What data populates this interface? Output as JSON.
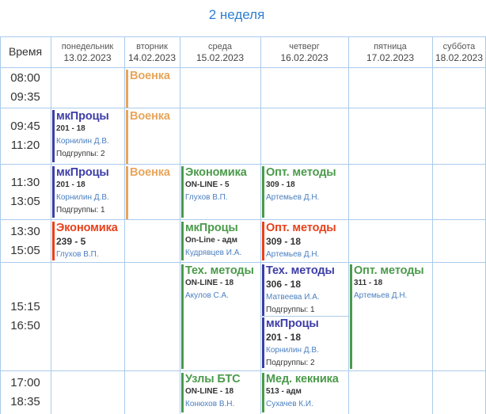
{
  "title": "2 неделя",
  "time_header": "Время",
  "days": [
    {
      "name": "понедельник",
      "date": "13.02.2023"
    },
    {
      "name": "вторник",
      "date": "14.02.2023"
    },
    {
      "name": "среда",
      "date": "15.02.2023"
    },
    {
      "name": "четверг",
      "date": "16.02.2023"
    },
    {
      "name": "пятница",
      "date": "17.02.2023"
    },
    {
      "name": "суббота",
      "date": "18.02.2023"
    }
  ],
  "slots": [
    {
      "start": "08:00",
      "end": "09:35"
    },
    {
      "start": "09:45",
      "end": "11:20"
    },
    {
      "start": "11:30",
      "end": "13:05"
    },
    {
      "start": "13:30",
      "end": "15:05"
    },
    {
      "start": "15:15",
      "end": "16:50"
    },
    {
      "start": "17:00",
      "end": "18:35"
    }
  ],
  "colors": {
    "purple": "#3d3da8",
    "orange": "#e8a55a",
    "green": "#4a9a4a",
    "red": "#e8401a",
    "grid": "#a9cbea",
    "title": "#2f7fd0"
  },
  "lessons": [
    {
      "day": 1,
      "slot": 0,
      "color": "orange",
      "subject": "Военка"
    },
    {
      "day": 0,
      "slot": 1,
      "color": "purple",
      "subject": "мкПроцы",
      "room": "201 - 18",
      "teacher": "Корнилин Д.В.",
      "group": "Подгруппы: 2"
    },
    {
      "day": 1,
      "slot": 1,
      "color": "orange",
      "subject": "Военка"
    },
    {
      "day": 0,
      "slot": 2,
      "color": "purple",
      "subject": "мкПроцы",
      "room": "201 - 18",
      "teacher": "Корнилин Д.В.",
      "group": "Подгруппы: 1"
    },
    {
      "day": 1,
      "slot": 2,
      "color": "orange",
      "subject": "Военка"
    },
    {
      "day": 2,
      "slot": 2,
      "color": "green",
      "subject": "Экономика",
      "room": "ON-LINE - 5",
      "teacher": "Глухов В.П."
    },
    {
      "day": 3,
      "slot": 2,
      "color": "green",
      "subject": "Опт. методы",
      "room": "309 - 18",
      "teacher": "Артемьев Д.Н."
    },
    {
      "day": 0,
      "slot": 3,
      "color": "red",
      "subject": "Экономика",
      "room": "239 - 5",
      "roomBig": true,
      "teacher": "Глухов В.П."
    },
    {
      "day": 2,
      "slot": 3,
      "color": "green",
      "subject": "мкПроцы",
      "room": "On-Line - адм",
      "teacher": "Кудрявцев И.А."
    },
    {
      "day": 3,
      "slot": 3,
      "color": "red",
      "subject": "Опт. методы",
      "room": "309 - 18",
      "roomBig": true,
      "teacher": "Артемьев Д.Н."
    },
    {
      "day": 2,
      "slot": 4,
      "color": "green",
      "subject": "Тех. методы",
      "room": "ON-LINE - 18",
      "teacher": "Акулов С.А."
    },
    {
      "day": 3,
      "slot": 4,
      "color": "purple",
      "subject": "Тех. методы",
      "room": "306 - 18",
      "roomBig": true,
      "teacher": "Матвеева И.А.",
      "group": "Подгруппы: 1"
    },
    {
      "day": 3,
      "slot": 4,
      "sub": 1,
      "color": "purple",
      "subject": "мкПроцы",
      "room": "201 - 18",
      "roomBig": true,
      "teacher": "Корнилин Д.В.",
      "group": "Подгруппы: 2"
    },
    {
      "day": 4,
      "slot": 4,
      "color": "green",
      "subject": "Опт. методы",
      "room": "311 - 18",
      "teacher": "Артемьев Д.Н."
    },
    {
      "day": 2,
      "slot": 5,
      "color": "green",
      "subject": "Узлы БТС",
      "room": "ON-LINE - 18",
      "teacher": "Конюхов В.Н."
    },
    {
      "day": 3,
      "slot": 5,
      "color": "green",
      "subject": "Мед. кекника",
      "room": "513 - адм",
      "teacher": "Сухачев К.И."
    }
  ]
}
